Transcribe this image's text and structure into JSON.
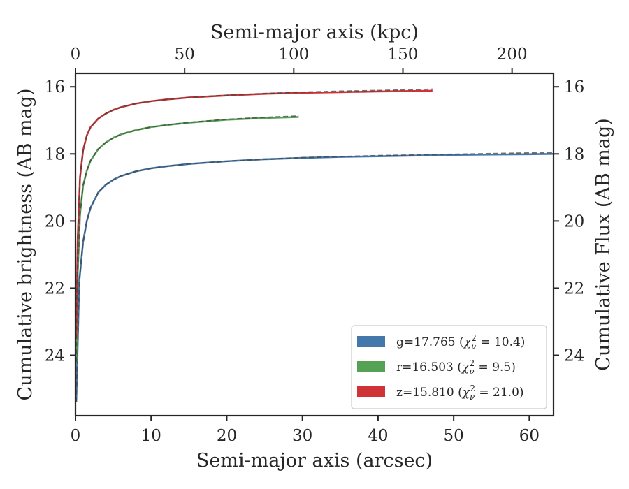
{
  "chart_data": {
    "type": "line",
    "xlabel": "Semi-major axis (arcsec)",
    "x2label": "Semi-major axis (kpc)",
    "ylabel": "Cumulative brightness (AB mag)",
    "y2label": "Cumulative Flux (AB mag)",
    "xlim": [
      0,
      63.2
    ],
    "x2lim": [
      0,
      219
    ],
    "ylim": [
      25.8,
      15.6
    ],
    "y_inverted": true,
    "xticks": [
      0,
      10,
      20,
      30,
      40,
      50,
      60
    ],
    "x2ticks": [
      0,
      50,
      100,
      150,
      200
    ],
    "yticks": [
      16,
      18,
      20,
      22,
      24
    ],
    "grid": false,
    "legend_position": "lower-right",
    "series": [
      {
        "name": "g=17.765 (χ²_ν = 10.4)",
        "legend_main": "g=17.765",
        "legend_chi": "10.4",
        "color": "#4477aa",
        "x": [
          0.1,
          0.5,
          1,
          1.5,
          2,
          3,
          4,
          5,
          6,
          8,
          10,
          12,
          15,
          20,
          25,
          30,
          35,
          40,
          45,
          50,
          55,
          60,
          63.2
        ],
        "y": [
          25.4,
          21.8,
          20.63,
          20.0,
          19.6,
          19.15,
          18.92,
          18.77,
          18.66,
          18.52,
          18.43,
          18.37,
          18.3,
          18.22,
          18.16,
          18.12,
          18.09,
          18.07,
          18.05,
          18.03,
          18.02,
          18.01,
          18.0
        ],
        "model_y": [
          25.4,
          21.8,
          20.63,
          20.0,
          19.6,
          19.15,
          18.92,
          18.77,
          18.66,
          18.52,
          18.43,
          18.37,
          18.3,
          18.22,
          18.16,
          18.11,
          18.08,
          18.05,
          18.03,
          18.01,
          17.99,
          17.97,
          17.96
        ]
      },
      {
        "name": "r=16.503 (χ²_ν = 9.5)",
        "legend_main": "r=16.503",
        "legend_chi": "9.5",
        "color": "#55a255",
        "x": [
          0.1,
          0.3,
          0.6,
          1,
          1.5,
          2,
          3,
          4,
          5,
          6,
          8,
          10,
          12,
          15,
          20,
          25,
          29.5
        ],
        "y": [
          24.2,
          21.5,
          19.8,
          18.95,
          18.5,
          18.2,
          17.86,
          17.66,
          17.52,
          17.42,
          17.29,
          17.2,
          17.14,
          17.07,
          16.98,
          16.93,
          16.9
        ],
        "model_y": [
          24.2,
          21.5,
          19.8,
          18.95,
          18.5,
          18.2,
          17.86,
          17.66,
          17.52,
          17.42,
          17.29,
          17.2,
          17.14,
          17.06,
          16.97,
          16.91,
          16.87
        ]
      },
      {
        "name": "z=15.810 (χ²_ν = 21.0)",
        "legend_main": "z=15.810",
        "legend_chi": "21.0",
        "color": "#cf3336",
        "x": [
          0.1,
          0.3,
          0.6,
          1,
          1.5,
          2,
          3,
          4,
          5,
          6,
          8,
          10,
          12,
          15,
          20,
          25,
          30,
          35,
          40,
          47.2
        ],
        "y": [
          23.5,
          20.5,
          18.7,
          17.9,
          17.45,
          17.2,
          16.95,
          16.8,
          16.69,
          16.61,
          16.5,
          16.43,
          16.38,
          16.32,
          16.26,
          16.21,
          16.18,
          16.16,
          16.14,
          16.12
        ],
        "model_y": [
          23.5,
          20.5,
          18.7,
          17.9,
          17.45,
          17.2,
          16.95,
          16.8,
          16.69,
          16.61,
          16.5,
          16.43,
          16.38,
          16.32,
          16.25,
          16.2,
          16.16,
          16.13,
          16.11,
          16.07
        ]
      }
    ]
  }
}
